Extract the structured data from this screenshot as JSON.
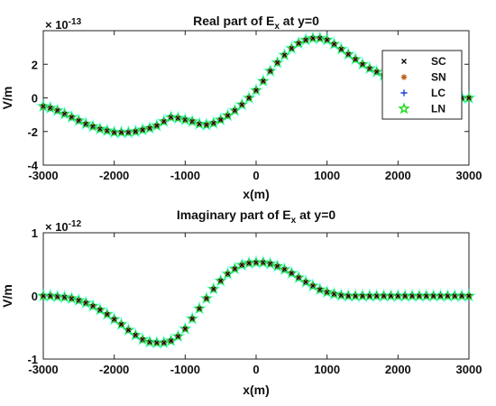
{
  "chart_data": [
    {
      "type": "scatter",
      "title": "Real part of E",
      "title_subscript": "x",
      "title_suffix": " at y=0",
      "xlabel": "x(m)",
      "ylabel": "V/m",
      "exponent_base": "× 10",
      "exponent_power": "-13",
      "xlim": [
        -3000,
        3000
      ],
      "ylim": [
        -4,
        4
      ],
      "xticks": [
        "-3000",
        "-2000",
        "-1000",
        "0",
        "1000",
        "2000",
        "3000"
      ],
      "yticks": [
        "-4",
        "-2",
        "0",
        "2"
      ],
      "legend_position": "top-right",
      "legend": [
        "SC",
        "SN",
        "LC",
        "LN"
      ],
      "x": [
        -3000,
        -2900,
        -2800,
        -2700,
        -2600,
        -2500,
        -2400,
        -2300,
        -2200,
        -2100,
        -2000,
        -1900,
        -1800,
        -1700,
        -1600,
        -1500,
        -1400,
        -1300,
        -1200,
        -1100,
        -1000,
        -900,
        -800,
        -700,
        -600,
        -500,
        -400,
        -300,
        -200,
        -100,
        0,
        100,
        200,
        300,
        400,
        500,
        600,
        700,
        800,
        900,
        1000,
        1100,
        1200,
        1300,
        1400,
        1500,
        1600,
        1700,
        1800,
        1900,
        2000,
        2100,
        2200,
        2300,
        2400,
        2500,
        2600,
        2700,
        2800,
        2900,
        3000
      ],
      "y": [
        -0.5,
        -0.6,
        -0.75,
        -0.95,
        -1.15,
        -1.35,
        -1.55,
        -1.7,
        -1.85,
        -1.95,
        -2.05,
        -2.05,
        -2.05,
        -2.0,
        -1.9,
        -1.8,
        -1.65,
        -1.4,
        -1.15,
        -1.2,
        -1.3,
        -1.4,
        -1.55,
        -1.6,
        -1.5,
        -1.3,
        -1.05,
        -0.75,
        -0.4,
        0.0,
        0.45,
        1.0,
        1.6,
        2.1,
        2.55,
        2.95,
        3.25,
        3.45,
        3.55,
        3.55,
        3.45,
        3.2,
        2.9,
        2.6,
        2.3,
        2.0,
        1.75,
        1.55,
        1.35,
        1.2,
        1.05,
        0.95,
        0.85,
        0.75,
        0.65,
        0.5,
        0.35,
        0.2,
        0.05,
        0.0,
        0.0
      ]
    },
    {
      "type": "scatter",
      "title": "Imaginary part of E",
      "title_subscript": "x",
      "title_suffix": " at y=0",
      "xlabel": "x(m)",
      "ylabel": "V/m",
      "exponent_base": "× 10",
      "exponent_power": "-12",
      "xlim": [
        -3000,
        3000
      ],
      "ylim": [
        -1,
        1
      ],
      "xticks": [
        "-3000",
        "-2000",
        "-1000",
        "0",
        "1000",
        "2000",
        "3000"
      ],
      "yticks": [
        "-1",
        "0",
        "1"
      ],
      "legend": [],
      "x": [
        -3000,
        -2900,
        -2800,
        -2700,
        -2600,
        -2500,
        -2400,
        -2300,
        -2200,
        -2100,
        -2000,
        -1900,
        -1800,
        -1700,
        -1600,
        -1500,
        -1400,
        -1300,
        -1200,
        -1100,
        -1000,
        -900,
        -800,
        -700,
        -600,
        -500,
        -400,
        -300,
        -200,
        -100,
        0,
        100,
        200,
        300,
        400,
        500,
        600,
        700,
        800,
        900,
        1000,
        1100,
        1200,
        1300,
        1400,
        1500,
        1600,
        1700,
        1800,
        1900,
        2000,
        2100,
        2200,
        2300,
        2400,
        2500,
        2600,
        2700,
        2800,
        2900,
        3000
      ],
      "y": [
        0.0,
        0.0,
        -0.01,
        -0.02,
        -0.04,
        -0.07,
        -0.11,
        -0.16,
        -0.22,
        -0.29,
        -0.37,
        -0.45,
        -0.54,
        -0.62,
        -0.69,
        -0.73,
        -0.74,
        -0.74,
        -0.71,
        -0.64,
        -0.52,
        -0.36,
        -0.2,
        -0.04,
        0.11,
        0.24,
        0.35,
        0.43,
        0.49,
        0.52,
        0.53,
        0.53,
        0.51,
        0.47,
        0.42,
        0.36,
        0.29,
        0.22,
        0.16,
        0.1,
        0.06,
        0.03,
        0.01,
        0.0,
        0.0,
        0.0,
        0.0,
        0.0,
        0.0,
        0.0,
        0.0,
        0.0,
        0.0,
        0.0,
        0.0,
        0.0,
        0.0,
        0.0,
        0.0,
        0.0,
        0.0
      ]
    }
  ],
  "colors": {
    "SC": "#000000",
    "SN": "#b5651d",
    "LC": "#1f3fd6",
    "LN": "#22dd22",
    "LN_outline": "#00ffff"
  }
}
